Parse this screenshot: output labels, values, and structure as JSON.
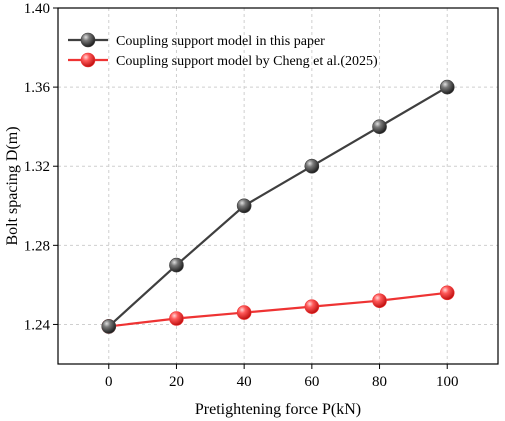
{
  "chart_data": {
    "type": "line",
    "xlabel": "Pretightening force P(kN)",
    "ylabel": "Bolt spacing D(m)",
    "x": [
      0,
      20,
      40,
      60,
      80,
      100
    ],
    "xticks": [
      0,
      20,
      40,
      60,
      80,
      100
    ],
    "yticks": [
      1.24,
      1.28,
      1.32,
      1.36,
      1.4
    ],
    "ytick_labels": [
      "1.24",
      "1.28",
      "1.32",
      "1.36",
      "1.40"
    ],
    "xlim": [
      -15,
      115
    ],
    "ylim": [
      1.22,
      1.4
    ],
    "grid": true,
    "legend": "top-left",
    "series": [
      {
        "name": "Coupling support model in this paper",
        "values": [
          1.239,
          1.27,
          1.3,
          1.32,
          1.34,
          1.36
        ],
        "color": "#3f3f3f",
        "marker_color": "#4a4a4a"
      },
      {
        "name": "Coupling support model by Cheng et al.(2025)",
        "values": [
          1.239,
          1.243,
          1.246,
          1.249,
          1.252,
          1.256
        ],
        "color": "#ee3333",
        "marker_color": "#ff3b3b"
      }
    ]
  }
}
